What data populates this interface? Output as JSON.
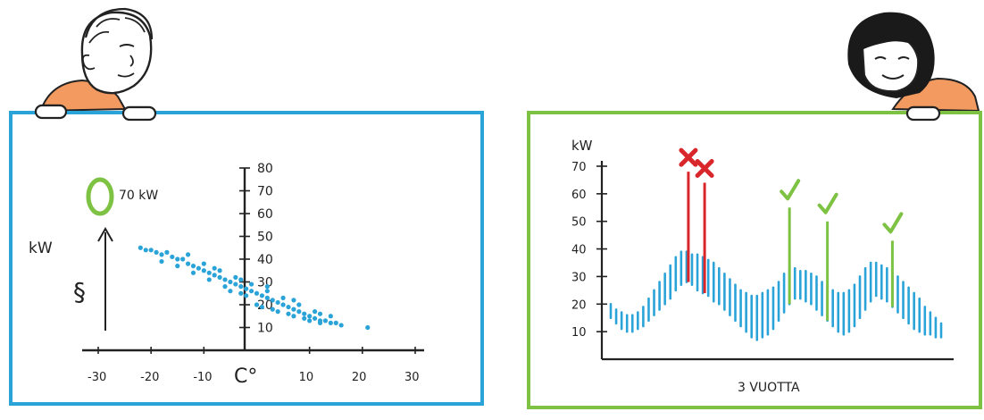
{
  "left_board": {
    "frame_color": "#2aa3d8",
    "y_label": "kW",
    "y_symbol": "§",
    "legend_value": "70 kW",
    "legend_marker_color": "#7dc242",
    "x_unit": "C°",
    "x_ticks": [
      "-30",
      "-20",
      "-10",
      "10",
      "20",
      "30"
    ],
    "y_ticks": [
      "10",
      "20",
      "30",
      "40",
      "50",
      "60",
      "70",
      "80"
    ],
    "dot_color": "#2aa3d8"
  },
  "right_board": {
    "frame_color": "#7dc242",
    "y_label": "kW",
    "y_ticks": [
      "10",
      "20",
      "30",
      "40",
      "50",
      "60",
      "70"
    ],
    "x_label": "3 VUOTTA",
    "bar_color": "#2aa3d8",
    "reject_color": "#d9262b",
    "accept_color": "#7dc242"
  },
  "chart_data": [
    {
      "type": "scatter",
      "xlabel": "C°",
      "ylabel": "kW",
      "xlim": [
        -30,
        30
      ],
      "ylim": [
        0,
        80
      ],
      "annotation": "70 kW",
      "grid": false,
      "points": [
        [
          -22,
          45
        ],
        [
          -21,
          44
        ],
        [
          -20,
          44
        ],
        [
          -19,
          43
        ],
        [
          -18,
          42
        ],
        [
          -17,
          43
        ],
        [
          -16,
          41
        ],
        [
          -15,
          40
        ],
        [
          -14,
          40
        ],
        [
          -13,
          38
        ],
        [
          -12,
          37
        ],
        [
          -11,
          36
        ],
        [
          -10,
          35
        ],
        [
          -9,
          34
        ],
        [
          -8,
          33
        ],
        [
          -7,
          32
        ],
        [
          -6,
          31
        ],
        [
          -5,
          30
        ],
        [
          -4,
          29
        ],
        [
          -3,
          28
        ],
        [
          -2,
          27
        ],
        [
          -1,
          26
        ],
        [
          0,
          25
        ],
        [
          1,
          24
        ],
        [
          2,
          23
        ],
        [
          3,
          22
        ],
        [
          4,
          21
        ],
        [
          5,
          20
        ],
        [
          6,
          19
        ],
        [
          7,
          18
        ],
        [
          8,
          17
        ],
        [
          9,
          16
        ],
        [
          10,
          15
        ],
        [
          11,
          14
        ],
        [
          12,
          13
        ],
        [
          13,
          13
        ],
        [
          14,
          12
        ],
        [
          15,
          12
        ],
        [
          16,
          11
        ],
        [
          21,
          10
        ],
        [
          -18,
          39
        ],
        [
          -15,
          37
        ],
        [
          -12,
          34
        ],
        [
          -9,
          31
        ],
        [
          -6,
          28
        ],
        [
          -3,
          25
        ],
        [
          0,
          20
        ],
        [
          3,
          18
        ],
        [
          6,
          16
        ],
        [
          9,
          14
        ],
        [
          12,
          12
        ],
        [
          -10,
          38
        ],
        [
          -7,
          35
        ],
        [
          -4,
          32
        ],
        [
          -1,
          29
        ],
        [
          2,
          26
        ],
        [
          5,
          23
        ],
        [
          8,
          20
        ],
        [
          11,
          17
        ],
        [
          14,
          15
        ],
        [
          -5,
          26
        ],
        [
          -2,
          24
        ],
        [
          1,
          19
        ],
        [
          4,
          17
        ],
        [
          7,
          15
        ],
        [
          10,
          13
        ],
        [
          -13,
          42
        ],
        [
          -8,
          36
        ],
        [
          -3,
          31
        ],
        [
          2,
          28
        ],
        [
          7,
          22
        ],
        [
          12,
          16
        ]
      ]
    },
    {
      "type": "bar",
      "xlabel": "3 VUOTTA",
      "ylabel": "kW",
      "ylim": [
        0,
        70
      ],
      "grid": false,
      "series": [
        {
          "values": [
            [
              15,
              20
            ],
            [
              13,
              18
            ],
            [
              11,
              17
            ],
            [
              10,
              16
            ],
            [
              10,
              16
            ],
            [
              11,
              17
            ],
            [
              12,
              19
            ],
            [
              14,
              22
            ],
            [
              16,
              25
            ],
            [
              18,
              28
            ],
            [
              20,
              31
            ],
            [
              22,
              34
            ],
            [
              25,
              37
            ],
            [
              27,
              39
            ],
            [
              28,
              39
            ],
            [
              27,
              38
            ],
            [
              25,
              38
            ],
            [
              24,
              37
            ],
            [
              23,
              36
            ],
            [
              21,
              35
            ],
            [
              20,
              33
            ],
            [
              18,
              31
            ],
            [
              16,
              29
            ],
            [
              14,
              27
            ],
            [
              12,
              25
            ],
            [
              10,
              24
            ],
            [
              8,
              23
            ],
            [
              7,
              23
            ],
            [
              8,
              24
            ],
            [
              9,
              25
            ],
            [
              11,
              26
            ],
            [
              14,
              28
            ],
            [
              17,
              31
            ],
            [
              20,
              33
            ],
            [
              22,
              33
            ],
            [
              22,
              32
            ],
            [
              21,
              32
            ],
            [
              20,
              31
            ],
            [
              18,
              30
            ],
            [
              16,
              28
            ],
            [
              14,
              26
            ],
            [
              12,
              25
            ],
            [
              10,
              24
            ],
            [
              9,
              24
            ],
            [
              10,
              25
            ],
            [
              12,
              27
            ],
            [
              15,
              30
            ],
            [
              18,
              33
            ],
            [
              21,
              35
            ],
            [
              23,
              35
            ],
            [
              22,
              34
            ],
            [
              21,
              33
            ],
            [
              19,
              32
            ],
            [
              17,
              30
            ],
            [
              15,
              28
            ],
            [
              13,
              26
            ],
            [
              11,
              24
            ],
            [
              10,
              22
            ],
            [
              9,
              19
            ],
            [
              9,
              17
            ],
            [
              8,
              15
            ],
            [
              8,
              13
            ]
          ]
        }
      ],
      "rejected_peaks": [
        {
          "x_index": 14,
          "value": 68
        },
        {
          "x_index": 17,
          "value": 64
        }
      ],
      "accepted_peaks": [
        {
          "x_index": 33,
          "value": 55
        },
        {
          "x_index": 40,
          "value": 50
        },
        {
          "x_index": 52,
          "value": 43
        }
      ]
    }
  ]
}
